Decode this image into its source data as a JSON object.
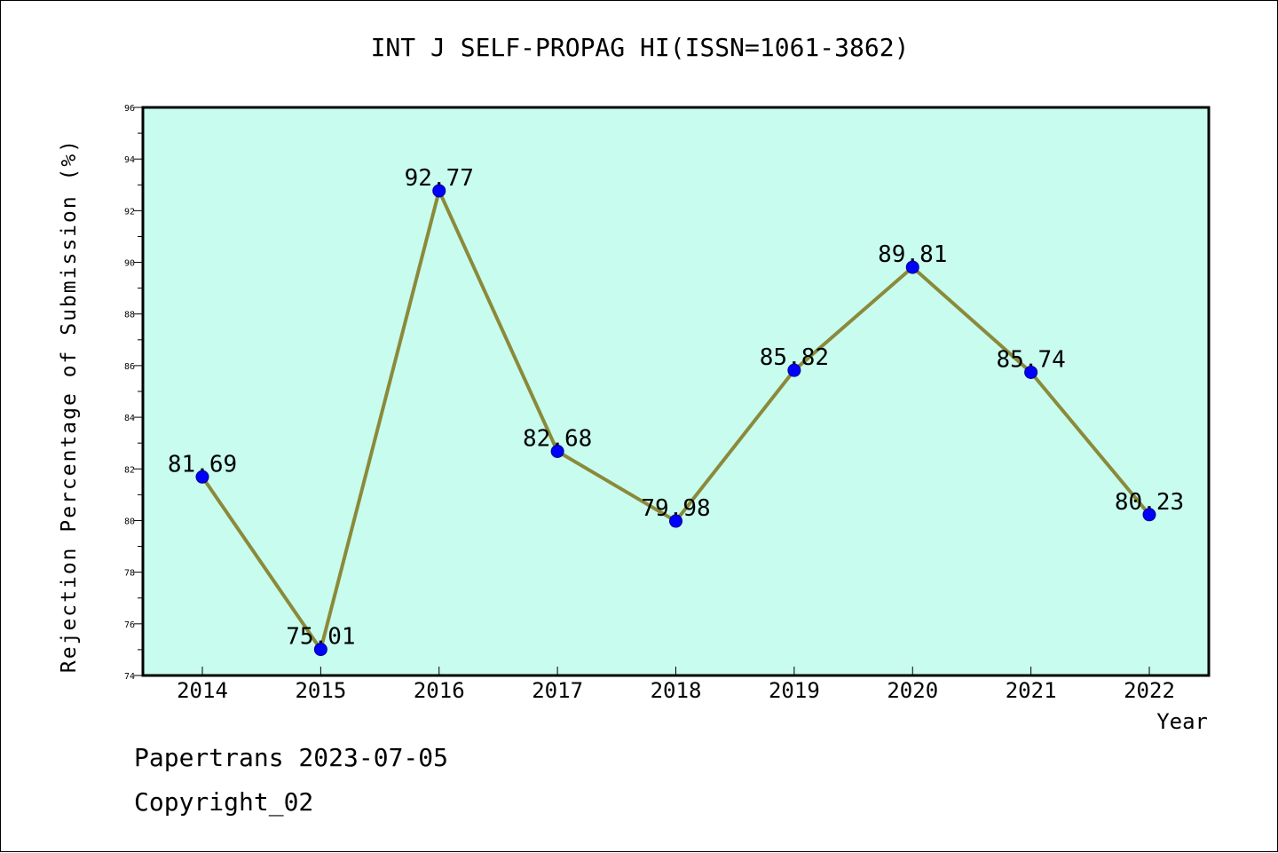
{
  "title": "INT J SELF-PROPAG HI(ISSN=1061-3862)",
  "footer": {
    "line1": "Papertrans 2023-07-05",
    "line2": "Copyright_02"
  },
  "chart_data": {
    "type": "line",
    "title": "INT J SELF-PROPAG HI(ISSN=1061-3862)",
    "xlabel": "Year",
    "ylabel": "Rejection Percentage of Submission (%)",
    "categories": [
      "2014",
      "2015",
      "2016",
      "2017",
      "2018",
      "2019",
      "2020",
      "2021",
      "2022"
    ],
    "values": [
      81.69,
      75.01,
      92.77,
      82.68,
      79.98,
      85.82,
      89.81,
      85.74,
      80.23
    ],
    "data_labels": [
      "81.69",
      "75.01",
      "92.77",
      "82.68",
      "79.98",
      "85.82",
      "89.81",
      "85.74",
      "80.23"
    ],
    "ylim": [
      74,
      96
    ],
    "yticks": [
      "74",
      "76",
      "78",
      "80",
      "82",
      "84",
      "86",
      "88",
      "90",
      "92",
      "94",
      "96"
    ],
    "grid": false,
    "colors": {
      "plot_background": "#c8fcee",
      "line": "#8b8a3a",
      "marker": "#0000ff"
    }
  }
}
